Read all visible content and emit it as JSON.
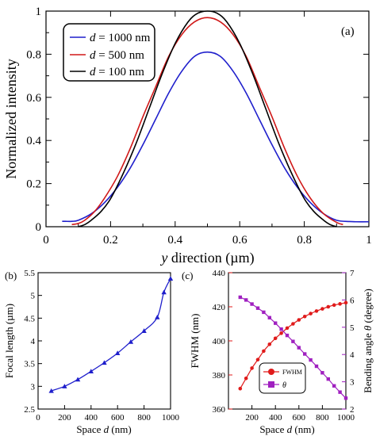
{
  "chart_data": [
    {
      "panel": "(a)",
      "type": "line",
      "xlabel": "y direction (µm)",
      "xlabel_italic_part": "y",
      "xlabel_rest": " direction (µm)",
      "ylabel": "Normalized intensity",
      "xlim": [
        0,
        1
      ],
      "ylim": [
        0,
        1
      ],
      "xticks": [
        "0",
        "0.2",
        "0.4",
        "0.6",
        "0.8",
        "1"
      ],
      "yticks": [
        "0",
        "0.2",
        "0.4",
        "0.6",
        "0.8",
        "1"
      ],
      "legend_position": "top-left",
      "series": [
        {
          "name": "d = 1000 nm",
          "name_italic": "d",
          "name_rest": " = 1000 nm",
          "color": "#1f1fcc",
          "x": [
            0.05,
            0.06,
            0.08,
            0.1,
            0.14,
            0.18,
            0.22,
            0.26,
            0.3,
            0.34,
            0.38,
            0.42,
            0.46,
            0.5,
            0.54,
            0.58,
            0.62,
            0.66,
            0.7,
            0.74,
            0.78,
            0.82,
            0.86,
            0.9,
            0.94,
            0.96,
            1.0
          ],
          "y": [
            0.025,
            0.025,
            0.025,
            0.03,
            0.06,
            0.11,
            0.18,
            0.27,
            0.38,
            0.5,
            0.62,
            0.72,
            0.79,
            0.81,
            0.79,
            0.72,
            0.62,
            0.5,
            0.38,
            0.27,
            0.18,
            0.11,
            0.06,
            0.03,
            0.024,
            0.023,
            0.023
          ]
        },
        {
          "name": "d = 500 nm",
          "name_italic": "d",
          "name_rest": " = 500 nm",
          "color": "#d01818",
          "x": [
            0.08,
            0.1,
            0.12,
            0.15,
            0.18,
            0.22,
            0.26,
            0.3,
            0.34,
            0.38,
            0.42,
            0.46,
            0.5,
            0.54,
            0.58,
            0.62,
            0.66,
            0.7,
            0.74,
            0.78,
            0.82,
            0.86,
            0.9,
            0.92
          ],
          "y": [
            0.01,
            0.015,
            0.03,
            0.07,
            0.13,
            0.23,
            0.36,
            0.51,
            0.65,
            0.79,
            0.89,
            0.95,
            0.97,
            0.95,
            0.89,
            0.79,
            0.65,
            0.51,
            0.36,
            0.23,
            0.13,
            0.06,
            0.02,
            0.01
          ]
        },
        {
          "name": "d = 100 nm",
          "name_italic": "d",
          "name_rest": " = 100 nm",
          "color": "#000000",
          "x": [
            0.1,
            0.12,
            0.14,
            0.17,
            0.2,
            0.24,
            0.28,
            0.32,
            0.36,
            0.4,
            0.44,
            0.47,
            0.5,
            0.53,
            0.56,
            0.6,
            0.64,
            0.68,
            0.72,
            0.76,
            0.8,
            0.83,
            0.86,
            0.88,
            0.9
          ],
          "y": [
            0.0,
            0.01,
            0.03,
            0.07,
            0.13,
            0.25,
            0.39,
            0.55,
            0.71,
            0.85,
            0.95,
            0.99,
            1.0,
            0.99,
            0.95,
            0.85,
            0.71,
            0.55,
            0.39,
            0.25,
            0.13,
            0.07,
            0.03,
            0.01,
            0.0
          ]
        }
      ]
    },
    {
      "panel": "(b)",
      "type": "line",
      "xlabel": "Space d (nm)",
      "xlabel_pre": "Space ",
      "xlabel_italic_part": "d",
      "xlabel_post": " (nm)",
      "ylabel": "Focal length (µm)",
      "xlim": [
        0,
        1000
      ],
      "ylim": [
        2.5,
        5.5
      ],
      "xticks": [
        "0",
        "200",
        "400",
        "600",
        "800",
        "1000"
      ],
      "yticks": [
        "2.5",
        "3",
        "3.5",
        "4",
        "4.5",
        "5",
        "5.5"
      ],
      "series": [
        {
          "color": "#1f1fcc",
          "marker": "triangle",
          "x": [
            100,
            200,
            300,
            400,
            500,
            600,
            700,
            800,
            900,
            950,
            1000
          ],
          "y": [
            2.9,
            3.0,
            3.15,
            3.33,
            3.52,
            3.73,
            3.98,
            4.22,
            4.52,
            5.07,
            5.37
          ]
        }
      ]
    },
    {
      "panel": "(c)",
      "type": "line",
      "xlabel": "Space d (nm)",
      "xlabel_pre": "Space ",
      "xlabel_italic_part": "d",
      "xlabel_post": " (nm)",
      "ylabel_left": "FWHM (nm)",
      "ylabel_right": "Bending angle θ (degree)",
      "ylabel_right_pre": "Bending angle ",
      "ylabel_right_italic": "θ",
      "ylabel_right_post": " (degree)",
      "xlim": [
        0,
        1000
      ],
      "ylim_left": [
        360,
        440
      ],
      "ylim_right": [
        2,
        7
      ],
      "xticks": [
        "200",
        "400",
        "600",
        "800",
        "1000"
      ],
      "yticks_left": [
        "360",
        "380",
        "400",
        "420",
        "440"
      ],
      "yticks_right": [
        "2",
        "3",
        "4",
        "5",
        "6",
        "7"
      ],
      "legend_position": "bottom-center",
      "series": [
        {
          "name": "FWHM",
          "axis": "left",
          "color": "#e01b1b",
          "marker": "circle",
          "x": [
            100,
            150,
            200,
            250,
            300,
            350,
            400,
            450,
            500,
            550,
            600,
            650,
            700,
            750,
            800,
            850,
            900,
            950,
            1000
          ],
          "y": [
            372,
            378,
            384,
            389,
            394,
            398,
            401.5,
            404.5,
            407.5,
            410,
            412.3,
            414.3,
            416,
            417.5,
            418.8,
            420,
            421,
            421.7,
            422.4
          ]
        },
        {
          "name": "θ",
          "axis": "right",
          "color": "#a020c0",
          "marker": "square",
          "x": [
            100,
            150,
            200,
            250,
            300,
            350,
            400,
            450,
            500,
            550,
            600,
            650,
            700,
            750,
            800,
            850,
            900,
            950,
            1000
          ],
          "y": [
            6.1,
            6.0,
            5.85,
            5.7,
            5.55,
            5.35,
            5.15,
            4.93,
            4.7,
            4.48,
            4.25,
            4.02,
            3.8,
            3.57,
            3.33,
            3.1,
            2.85,
            2.62,
            2.4
          ]
        }
      ]
    }
  ]
}
